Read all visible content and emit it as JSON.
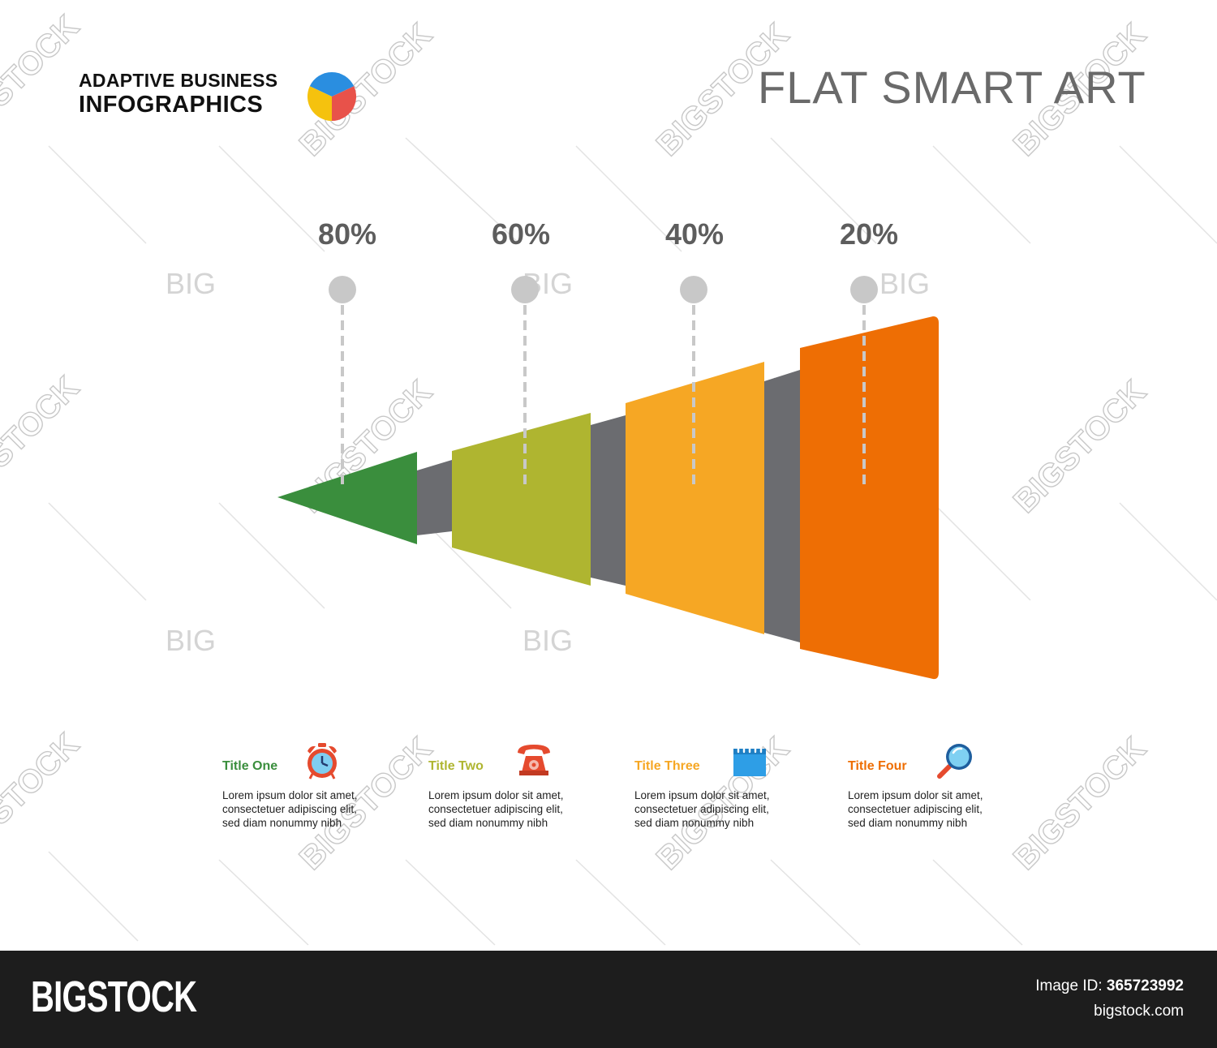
{
  "header": {
    "title_line1": "ADAPTIVE BUSINESS",
    "title_line2": "INFOGRAPHICS",
    "flat_title": "FLAT SMART ART"
  },
  "diagram": {
    "steps": [
      {
        "percent": "80%",
        "color": "#3a8e3d"
      },
      {
        "percent": "60%",
        "color": "#afb530"
      },
      {
        "percent": "40%",
        "color": "#f6a724"
      },
      {
        "percent": "20%",
        "color": "#ee6e04"
      }
    ],
    "connector_color": "#6b6c70",
    "marker_color": "#c8c8c8"
  },
  "legend": [
    {
      "title": "Title One",
      "color": "#3a8e3d",
      "icon": "alarm-clock-icon",
      "desc": [
        "Lorem ipsum dolor sit amet,",
        "consectetuer adipiscing elit,",
        "sed diam nonummy nibh"
      ]
    },
    {
      "title": "Title Two",
      "color": "#afb530",
      "icon": "telephone-icon",
      "desc": [
        "Lorem ipsum dolor sit amet,",
        "consectetuer adipiscing elit,",
        "sed diam nonummy nibh"
      ]
    },
    {
      "title": "Title Three",
      "color": "#f6a724",
      "icon": "calendar-icon",
      "desc": [
        "Lorem ipsum dolor sit amet,",
        "consectetuer adipiscing elit,",
        "sed diam nonummy nibh"
      ]
    },
    {
      "title": "Title Four",
      "color": "#ee6e04",
      "icon": "magnifier-icon",
      "desc": [
        "Lorem ipsum dolor sit amet,",
        "consectetuer adipiscing elit,",
        "sed diam nonummy nibh"
      ]
    }
  ],
  "watermark": {
    "short": "BIG",
    "long": "BIGSTOCK"
  },
  "footer": {
    "brand": "BIGSTOCK",
    "image_id_label": "Image ID:",
    "image_id": "365723992",
    "site": "bigstock.com"
  }
}
